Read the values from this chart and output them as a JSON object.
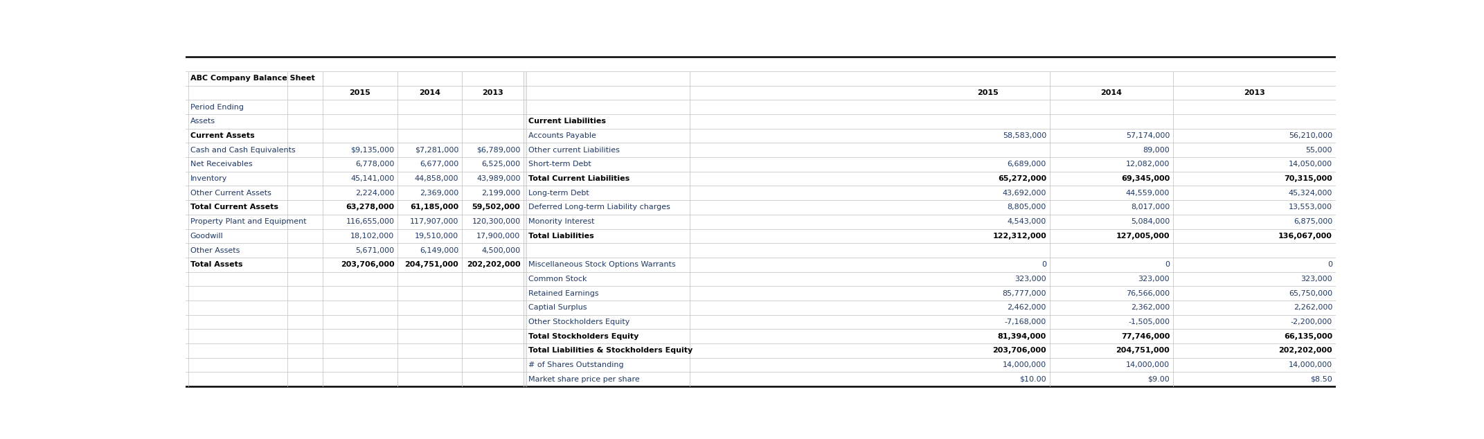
{
  "title": "ABC Company Balance Sheet",
  "left_col_header": "ABC Company Balance Sheet",
  "years_left": [
    "2015",
    "2014",
    "2013"
  ],
  "years_right": [
    "2015",
    "2014",
    "2013"
  ],
  "left_rows": [
    {
      "label": "Period Ending",
      "bold": false,
      "values": [
        "",
        "",
        ""
      ]
    },
    {
      "label": "Assets",
      "bold": false,
      "values": [
        "",
        "",
        ""
      ]
    },
    {
      "label": "Current Assets",
      "bold": true,
      "values": [
        "",
        "",
        ""
      ]
    },
    {
      "label": "Cash and Cash Equivalents",
      "bold": false,
      "values": [
        "$9,135,000",
        "$7,281,000",
        "$6,789,000"
      ]
    },
    {
      "label": "Net Receivables",
      "bold": false,
      "values": [
        "6,778,000",
        "6,677,000",
        "6,525,000"
      ]
    },
    {
      "label": "Inventory",
      "bold": false,
      "values": [
        "45,141,000",
        "44,858,000",
        "43,989,000"
      ]
    },
    {
      "label": "Other Current Assets",
      "bold": false,
      "values": [
        "2,224,000",
        "2,369,000",
        "2,199,000"
      ]
    },
    {
      "label": "Total Current Assets",
      "bold": true,
      "values": [
        "63,278,000",
        "61,185,000",
        "59,502,000"
      ]
    },
    {
      "label": "Property Plant and Equipment",
      "bold": false,
      "values": [
        "116,655,000",
        "117,907,000",
        "120,300,000"
      ]
    },
    {
      "label": "Goodwill",
      "bold": false,
      "values": [
        "18,102,000",
        "19,510,000",
        "17,900,000"
      ]
    },
    {
      "label": "Other Assets",
      "bold": false,
      "values": [
        "5,671,000",
        "6,149,000",
        "4,500,000"
      ]
    },
    {
      "label": "Total Assets",
      "bold": true,
      "values": [
        "203,706,000",
        "204,751,000",
        "202,202,000"
      ]
    }
  ],
  "right_rows": [
    {
      "label": "",
      "bold": false,
      "values": [
        "",
        "",
        ""
      ]
    },
    {
      "label": "Current Liabilities",
      "bold": true,
      "values": [
        "",
        "",
        ""
      ]
    },
    {
      "label": "Accounts Payable",
      "bold": false,
      "values": [
        "58,583,000",
        "57,174,000",
        "56,210,000"
      ]
    },
    {
      "label": "Other current Liabilities",
      "bold": false,
      "values": [
        "",
        "89,000",
        "55,000"
      ]
    },
    {
      "label": "Short-term Debt",
      "bold": false,
      "values": [
        "6,689,000",
        "12,082,000",
        "14,050,000"
      ]
    },
    {
      "label": "Total Current Liabilities",
      "bold": true,
      "values": [
        "65,272,000",
        "69,345,000",
        "70,315,000"
      ]
    },
    {
      "label": "Long-term Debt",
      "bold": false,
      "values": [
        "43,692,000",
        "44,559,000",
        "45,324,000"
      ]
    },
    {
      "label": "Deferred Long-term Liability charges",
      "bold": false,
      "values": [
        "8,805,000",
        "8,017,000",
        "13,553,000"
      ]
    },
    {
      "label": "Monority Interest",
      "bold": false,
      "values": [
        "4,543,000",
        "5,084,000",
        "6,875,000"
      ]
    },
    {
      "label": "Total Liabilities",
      "bold": true,
      "values": [
        "122,312,000",
        "127,005,000",
        "136,067,000"
      ]
    },
    {
      "label": "",
      "bold": false,
      "values": [
        "",
        "",
        ""
      ]
    },
    {
      "label": "Miscellaneous Stock Options Warrants",
      "bold": false,
      "values": [
        "0",
        "0",
        "0"
      ]
    },
    {
      "label": "Common Stock",
      "bold": false,
      "values": [
        "323,000",
        "323,000",
        "323,000"
      ]
    },
    {
      "label": "Retained Earnings",
      "bold": false,
      "values": [
        "85,777,000",
        "76,566,000",
        "65,750,000"
      ]
    },
    {
      "label": "Captial Surplus",
      "bold": false,
      "values": [
        "2,462,000",
        "2,362,000",
        "2,262,000"
      ]
    },
    {
      "label": "Other Stockholders Equity",
      "bold": false,
      "values": [
        "-7,168,000",
        "-1,505,000",
        "-2,200,000"
      ]
    },
    {
      "label": "Total Stockholders Equity",
      "bold": true,
      "values": [
        "81,394,000",
        "77,746,000",
        "66,135,000"
      ]
    },
    {
      "label": "Total Liabilities & Stockholders Equity",
      "bold": true,
      "values": [
        "203,706,000",
        "204,751,000",
        "202,202,000"
      ]
    },
    {
      "label": "# of Shares Outstanding",
      "bold": false,
      "values": [
        "14,000,000",
        "14,000,000",
        "14,000,000"
      ]
    },
    {
      "label": "Market share price per share",
      "bold": false,
      "values": [
        "$10.00",
        "$9.00",
        "$8.50"
      ]
    }
  ],
  "label_color": "#1F3864",
  "value_color": "#1F3864",
  "bg_color": "#FFFFFF",
  "grid_color": "#BFBFBF",
  "top_border_color": "#000000",
  "bottom_border_color": "#000000"
}
